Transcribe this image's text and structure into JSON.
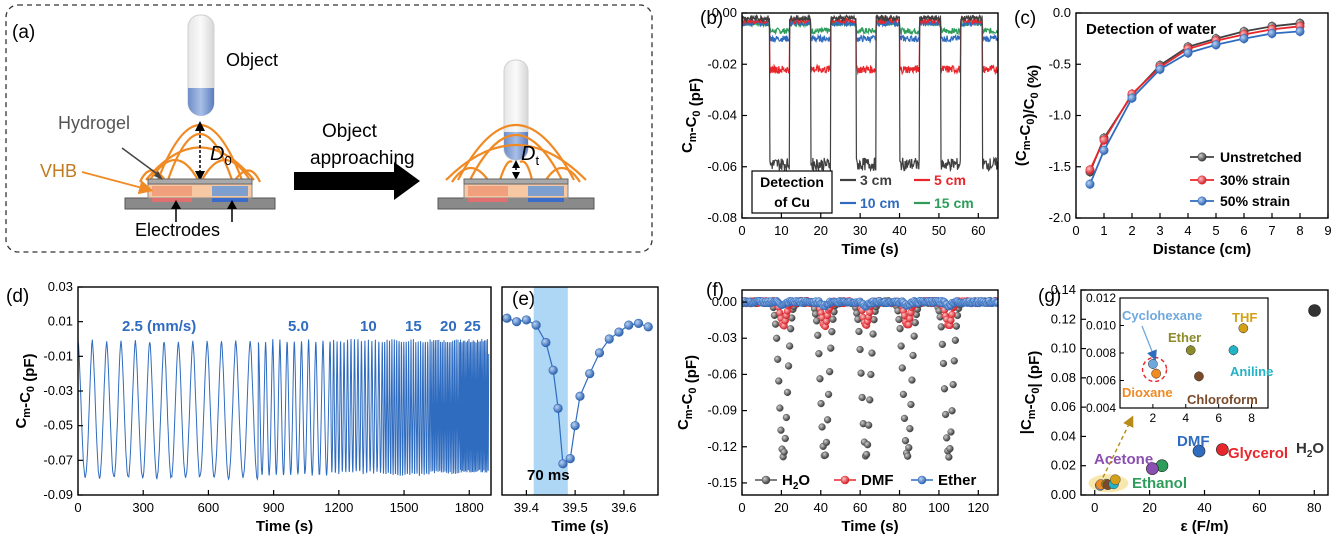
{
  "panel_letters": [
    "(a)",
    "(b)",
    "(c)",
    "(d)",
    "(e)",
    "(f)",
    "(g)"
  ],
  "schematic": {
    "object_label": "Object",
    "hydrogel_label": "Hydrogel",
    "vhb_label": "VHB",
    "electrodes_label": "Electrodes",
    "arrow_label_1": "Object",
    "arrow_label_2": "approaching",
    "distance_0": "D",
    "distance_0_sub": "0",
    "distance_t": "D",
    "distance_t_sub": "t"
  },
  "chart_data": [
    {
      "id": "b",
      "type": "line",
      "xlabel": "Time (s)",
      "ylabel": "Cm-C0 (pF)",
      "xlim": [
        0,
        65
      ],
      "ylim": [
        -0.08,
        0.0
      ],
      "xticks": [
        0,
        10,
        20,
        30,
        40,
        50,
        60
      ],
      "yticks": [
        -0.08,
        -0.06,
        -0.04,
        -0.02,
        0.0
      ],
      "annotation": "Detection of Cu",
      "pulses_start": [
        7,
        17.5,
        29,
        40,
        50.5,
        61
      ],
      "pulse_width": 5,
      "series": [
        {
          "name": "3 cm",
          "color": "#404040",
          "base": -0.002,
          "low": -0.059
        },
        {
          "name": "5 cm",
          "color": "#e8262b",
          "base": -0.003,
          "low": -0.022
        },
        {
          "name": "10 cm",
          "color": "#2f6cc0",
          "base": -0.004,
          "low": -0.01
        },
        {
          "name": "15 cm",
          "color": "#2e9d5b",
          "base": -0.004,
          "low": -0.007
        }
      ]
    },
    {
      "id": "c",
      "type": "line",
      "title": "Detection of water",
      "xlabel": "Distance (cm)",
      "ylabel": "(Cm-C0)/C0 (%)",
      "xlim": [
        0,
        9
      ],
      "ylim": [
        -2.0,
        0.0
      ],
      "xticks": [
        0,
        1,
        2,
        3,
        4,
        5,
        6,
        7,
        8,
        9
      ],
      "yticks": [
        -2.0,
        -1.5,
        -1.0,
        -0.5,
        0.0
      ],
      "x": [
        0.5,
        1,
        2,
        3,
        4,
        5,
        6,
        7,
        8
      ],
      "series": [
        {
          "name": "Unstretched",
          "color": "#404040",
          "values": [
            -1.55,
            -1.22,
            -0.8,
            -0.51,
            -0.33,
            -0.25,
            -0.18,
            -0.13,
            -0.1
          ]
        },
        {
          "name": "30% strain",
          "color": "#e8262b",
          "values": [
            -1.53,
            -1.24,
            -0.79,
            -0.53,
            -0.35,
            -0.27,
            -0.21,
            -0.16,
            -0.13
          ]
        },
        {
          "name": "50% strain",
          "color": "#2f6cc0",
          "values": [
            -1.67,
            -1.34,
            -0.83,
            -0.55,
            -0.39,
            -0.31,
            -0.25,
            -0.2,
            -0.18
          ]
        }
      ]
    },
    {
      "id": "d",
      "type": "line",
      "xlabel": "Time (s)",
      "ylabel": "Cm-C0 (pF)",
      "xlim": [
        0,
        1900
      ],
      "ylim": [
        -0.09,
        0.03
      ],
      "xticks": [
        0,
        300,
        600,
        900,
        1200,
        1500,
        1800
      ],
      "yticks": [
        -0.09,
        -0.07,
        -0.05,
        -0.03,
        -0.01,
        0.01,
        0.03
      ],
      "baseline": -0.001,
      "color": "#2f6cc0",
      "segments": [
        {
          "speed_label": "2.5 (mm/s)",
          "x_start": 0,
          "x_end": 830,
          "period": 66,
          "min": -0.08
        },
        {
          "speed_label": "5.0",
          "x_start": 830,
          "x_end": 1160,
          "period": 33,
          "min": -0.078
        },
        {
          "speed_label": "10",
          "x_start": 1160,
          "x_end": 1400,
          "period": 16,
          "min": -0.077
        },
        {
          "speed_label": "15",
          "x_start": 1400,
          "x_end": 1620,
          "period": 11,
          "min": -0.078
        },
        {
          "speed_label": "20",
          "x_start": 1620,
          "x_end": 1760,
          "period": 8,
          "min": -0.077
        },
        {
          "speed_label": "25",
          "x_start": 1760,
          "x_end": 1890,
          "period": 6.5,
          "min": -0.077
        }
      ]
    },
    {
      "id": "e",
      "type": "scatter",
      "xlabel": "Time (s)",
      "annotation": "70 ms",
      "xlim": [
        39.35,
        39.67
      ],
      "ylim": [
        -0.09,
        0.03
      ],
      "xticks": [
        39.4,
        39.5,
        39.6
      ],
      "highlight_span": [
        39.415,
        39.485
      ],
      "x": [
        39.36,
        39.38,
        39.4,
        39.42,
        39.44,
        39.455,
        39.465,
        39.475,
        39.49,
        39.5,
        39.51,
        39.53,
        39.55,
        39.57,
        39.59,
        39.61,
        39.63,
        39.65
      ],
      "y": [
        0.012,
        0.01,
        0.011,
        0.008,
        -0.002,
        -0.018,
        -0.04,
        -0.072,
        -0.069,
        -0.05,
        -0.033,
        -0.02,
        -0.008,
        0.0,
        0.004,
        0.008,
        0.009,
        0.007
      ]
    },
    {
      "id": "f",
      "type": "line",
      "xlabel": "Time (s)",
      "ylabel": "Cm-C0 (pF)",
      "xlim": [
        0,
        130
      ],
      "ylim": [
        -0.16,
        0.01
      ],
      "xticks": [
        0,
        20,
        40,
        60,
        80,
        100,
        120
      ],
      "yticks": [
        -0.15,
        -0.12,
        -0.09,
        -0.06,
        -0.03,
        0.0
      ],
      "dip_centers": [
        21,
        42,
        63,
        84,
        105
      ],
      "series": [
        {
          "name": "H2O",
          "color": "#555555",
          "min": -0.128,
          "width": 4.2
        },
        {
          "name": "DMF",
          "color": "#e8262b",
          "min": -0.02,
          "width": 3.0
        },
        {
          "name": "Ether",
          "color": "#2f6cc0",
          "min": -0.003,
          "width": 2.5
        }
      ]
    },
    {
      "id": "g",
      "type": "scatter",
      "xlabel": "ε (F/m)",
      "ylabel": "|Cm-C0| (pF)",
      "xlim": [
        -5,
        85
      ],
      "ylim": [
        0.0,
        0.14
      ],
      "xticks": [
        0,
        20,
        40,
        60,
        80
      ],
      "yticks": [
        0.0,
        0.02,
        0.04,
        0.06,
        0.08,
        0.1,
        0.12,
        0.14
      ],
      "points": [
        {
          "name": "H2O",
          "x": 80.1,
          "y": 0.126,
          "color": "#333333"
        },
        {
          "name": "Glycerol",
          "x": 46.5,
          "y": 0.031,
          "color": "#e8262b"
        },
        {
          "name": "DMF",
          "x": 38,
          "y": 0.03,
          "color": "#2f6cc0"
        },
        {
          "name": "Ethanol",
          "x": 24.5,
          "y": 0.02,
          "color": "#2e9d5b"
        },
        {
          "name": "Acetone",
          "x": 21,
          "y": 0.018,
          "color": "#8a4fb0"
        },
        {
          "name": "Cyclohexane",
          "x": 2.0,
          "y": 0.0072,
          "color": "#6fa8dc"
        },
        {
          "name": "Dioxane",
          "x": 2.2,
          "y": 0.0065,
          "color": "#f08a24"
        },
        {
          "name": "Ether",
          "x": 4.3,
          "y": 0.0082,
          "color": "#8d8a2a"
        },
        {
          "name": "Chloroform",
          "x": 4.8,
          "y": 0.0063,
          "color": "#7a4a2a"
        },
        {
          "name": "Aniline",
          "x": 6.9,
          "y": 0.0082,
          "color": "#23b3c6"
        },
        {
          "name": "THF",
          "x": 7.5,
          "y": 0.0098,
          "color": "#d4a017"
        }
      ],
      "inset": {
        "xlim": [
          0,
          9
        ],
        "ylim": [
          0.004,
          0.012
        ],
        "xticks": [
          2,
          4,
          6,
          8
        ],
        "yticks": [
          0.004,
          0.006,
          0.008,
          0.01,
          0.012
        ]
      }
    }
  ]
}
